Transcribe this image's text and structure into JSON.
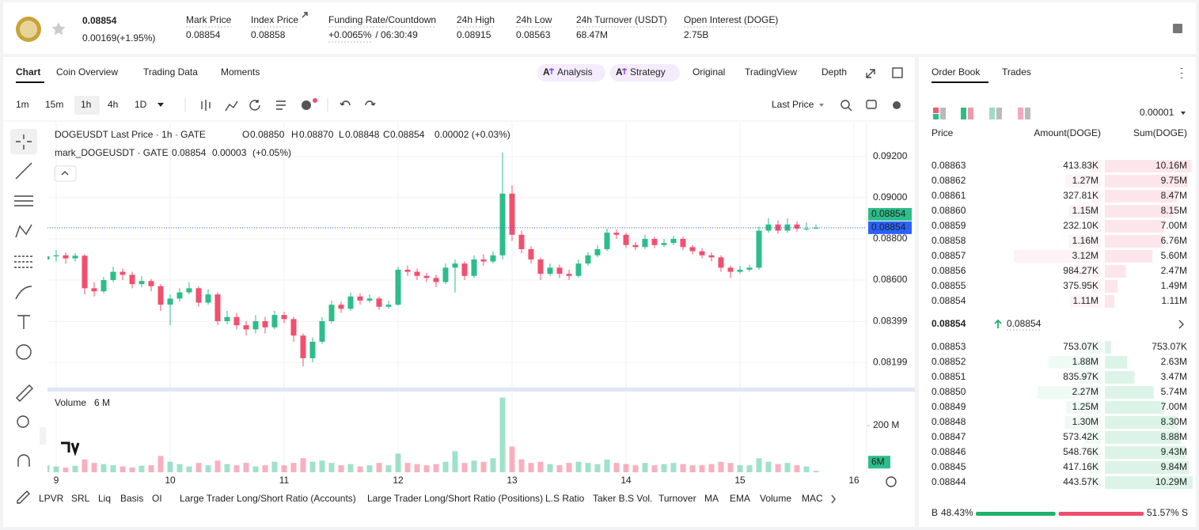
{
  "header": {
    "price": "0.08854",
    "change": "0.00169(+1.95%)",
    "stats": [
      {
        "label": "Mark Price",
        "value": "0.08854"
      },
      {
        "label": "Index Price",
        "value": "0.08858"
      },
      {
        "label": "Funding Rate/Countdown",
        "value": "+0.0065%",
        "extra": "/ 06:30:49"
      },
      {
        "label": "24h High",
        "value": "0.08915"
      },
      {
        "label": "24h Low",
        "value": "0.08563"
      },
      {
        "label": "24h Turnover (USDT)",
        "value": "68.47M"
      },
      {
        "label": "Open Interest (DOGE)",
        "value": "2.75B"
      }
    ]
  },
  "chart_tabs": [
    "Chart",
    "Coin Overview",
    "Trading Data",
    "Moments"
  ],
  "ai_buttons": [
    "Analysis",
    "Strategy"
  ],
  "view_tabs": [
    "Original",
    "TradingView",
    "Depth"
  ],
  "intervals": [
    "1m",
    "15m",
    "1h",
    "4h",
    "1D"
  ],
  "price_source": "Last Price",
  "legend": {
    "title": "DOGEUSDT Last Price · 1h · GATE",
    "ohlc": [
      "O",
      "0.08850",
      "H",
      "0.08870",
      "L",
      "0.08848",
      "C",
      "0.08854"
    ],
    "change": "0.00002 (+0.03%)",
    "mark_title": "mark_DOGEUSDT · GATE",
    "mark_values": [
      "0.08854",
      "0.00003",
      "(+0.05%)"
    ]
  },
  "chart_data": {
    "type": "candlestick",
    "up_color": "#2dbd8a",
    "down_color": "#f0506e",
    "x": [
      -2,
      0,
      2,
      4,
      6,
      8,
      10,
      12,
      14,
      16,
      18,
      20,
      22,
      24,
      26,
      28,
      30,
      32,
      34,
      36,
      38,
      40,
      42,
      44,
      46,
      48,
      50,
      52,
      54,
      56,
      58,
      60,
      62,
      64,
      66,
      68,
      70,
      72,
      74,
      76,
      78,
      80,
      82,
      84,
      86,
      88,
      90,
      92,
      94,
      96,
      98,
      100,
      102,
      104,
      106,
      108,
      110,
      112,
      114,
      116,
      118,
      120,
      122,
      124,
      126,
      128,
      130,
      132,
      134,
      136,
      138,
      140,
      142,
      144,
      146,
      148,
      150,
      152,
      154,
      156,
      158,
      160
    ],
    "open": [
      0.087,
      0.08715,
      0.0872,
      0.08705,
      0.08718,
      0.0856,
      0.08545,
      0.086,
      0.0864,
      0.08625,
      0.0858,
      0.08595,
      0.0857,
      0.0848,
      0.0851,
      0.0854,
      0.0856,
      0.0849,
      0.0853,
      0.084,
      0.0842,
      0.0838,
      0.0836,
      0.084,
      0.0837,
      0.0843,
      0.0841,
      0.0833,
      0.0822,
      0.083,
      0.084,
      0.0848,
      0.0846,
      0.0852,
      0.085,
      0.0851,
      0.0847,
      0.0848,
      0.0865,
      0.0864,
      0.0862,
      0.0861,
      0.0859,
      0.0866,
      0.0868,
      0.0862,
      0.087,
      0.0869,
      0.0872,
      0.0902,
      0.0882,
      0.0875,
      0.087,
      0.0863,
      0.0866,
      0.0863,
      0.0862,
      0.0868,
      0.0872,
      0.0875,
      0.0883,
      0.0882,
      0.0877,
      0.0876,
      0.088,
      0.0877,
      0.0878,
      0.088,
      0.0876,
      0.0874,
      0.0872,
      0.0871,
      0.0866,
      0.0864,
      0.0865,
      0.0866,
      0.0884,
      0.0887,
      0.0884,
      0.0887,
      0.0885,
      0.0885
    ],
    "high": [
      0.0874,
      0.08745,
      0.08735,
      0.0873,
      0.08725,
      0.0859,
      0.08615,
      0.08665,
      0.08655,
      0.0864,
      0.0862,
      0.08605,
      0.0858,
      0.0853,
      0.0856,
      0.0859,
      0.0857,
      0.08555,
      0.0854,
      0.0845,
      0.0844,
      0.084,
      0.0843,
      0.0842,
      0.0845,
      0.08445,
      0.0842,
      0.0834,
      0.0832,
      0.0842,
      0.085,
      0.08495,
      0.0854,
      0.08535,
      0.0853,
      0.0852,
      0.085,
      0.08665,
      0.0867,
      0.08655,
      0.08635,
      0.08625,
      0.0868,
      0.087,
      0.0869,
      0.0872,
      0.08725,
      0.0874,
      0.0922,
      0.0906,
      0.0884,
      0.08765,
      0.0871,
      0.0868,
      0.08675,
      0.0865,
      0.087,
      0.08735,
      0.0877,
      0.0885,
      0.08845,
      0.0883,
      0.08785,
      0.0882,
      0.0881,
      0.088,
      0.08815,
      0.0881,
      0.0877,
      0.08755,
      0.08735,
      0.0872,
      0.0867,
      0.0867,
      0.08675,
      0.0886,
      0.089,
      0.0889,
      0.089,
      0.08885,
      0.0888,
      0.0887
    ],
    "low": [
      0.0868,
      0.0869,
      0.0868,
      0.0869,
      0.0853,
      0.0852,
      0.08535,
      0.0859,
      0.086,
      0.0856,
      0.08565,
      0.08545,
      0.0845,
      0.0838,
      0.08495,
      0.0853,
      0.0847,
      0.0848,
      0.0838,
      0.08385,
      0.0836,
      0.0833,
      0.0834,
      0.0834,
      0.0836,
      0.0839,
      0.083,
      0.0818,
      0.082,
      0.0829,
      0.0839,
      0.0844,
      0.0845,
      0.0848,
      0.0849,
      0.08455,
      0.0846,
      0.08475,
      0.0862,
      0.086,
      0.0859,
      0.08565,
      0.0858,
      0.0854,
      0.086,
      0.0861,
      0.0867,
      0.0868,
      0.087,
      0.0879,
      0.0873,
      0.0868,
      0.086,
      0.0862,
      0.0861,
      0.086,
      0.0861,
      0.0867,
      0.0871,
      0.0874,
      0.088,
      0.08755,
      0.08745,
      0.0875,
      0.08755,
      0.0876,
      0.0877,
      0.08745,
      0.08725,
      0.08705,
      0.0869,
      0.0864,
      0.0861,
      0.0863,
      0.0864,
      0.0865,
      0.0883,
      0.08825,
      0.0883,
      0.08835,
      0.0884,
      0.08848
    ],
    "close": [
      0.08715,
      0.0872,
      0.08705,
      0.08718,
      0.0856,
      0.08545,
      0.086,
      0.0864,
      0.08625,
      0.0858,
      0.08595,
      0.0857,
      0.0848,
      0.0851,
      0.0854,
      0.0856,
      0.0849,
      0.0853,
      0.084,
      0.0842,
      0.0838,
      0.0836,
      0.084,
      0.0837,
      0.0843,
      0.0841,
      0.0833,
      0.0822,
      0.083,
      0.084,
      0.0848,
      0.0846,
      0.0852,
      0.085,
      0.0851,
      0.0847,
      0.0848,
      0.0865,
      0.0864,
      0.0862,
      0.0861,
      0.0859,
      0.0866,
      0.0868,
      0.0862,
      0.087,
      0.0869,
      0.0872,
      0.0902,
      0.0882,
      0.0875,
      0.087,
      0.0863,
      0.0866,
      0.0863,
      0.0862,
      0.0868,
      0.0872,
      0.0875,
      0.0883,
      0.0882,
      0.0877,
      0.0876,
      0.088,
      0.0877,
      0.0878,
      0.088,
      0.0876,
      0.0874,
      0.0872,
      0.0871,
      0.0866,
      0.0864,
      0.0865,
      0.0866,
      0.0884,
      0.0887,
      0.0884,
      0.0887,
      0.0885,
      0.0885,
      0.08854
    ],
    "xlim": [
      -1.833,
      170.667
    ],
    "xticks": [
      {
        "value": 0,
        "label": "9"
      },
      {
        "value": 24,
        "label": "10"
      },
      {
        "value": 48,
        "label": "11"
      },
      {
        "value": 72,
        "label": "12"
      },
      {
        "value": 96,
        "label": "13"
      },
      {
        "value": 120,
        "label": "14"
      },
      {
        "value": 144,
        "label": "15"
      },
      {
        "value": 168,
        "label": "16"
      }
    ],
    "ylim": [
      0.08077,
      0.09365
    ],
    "yticks": [
      {
        "value": 0.092,
        "label": "0.09200"
      },
      {
        "value": 0.09,
        "label": "0.09000"
      },
      {
        "value": 0.088,
        "label": "0.08800"
      },
      {
        "value": 0.086,
        "label": "0.08600"
      },
      0.08399,
      0.08199
    ],
    "grid": true,
    "price_line": {
      "value": 0.08854,
      "label": "0.08854",
      "color": "#2962ff"
    },
    "last_tag": "0.08854",
    "volume": {
      "title": "Volume",
      "last": "6 M",
      "last_tag": "6M",
      "values": [
        30,
        25,
        20,
        28,
        55,
        40,
        35,
        30,
        25,
        20,
        28,
        30,
        70,
        45,
        35,
        25,
        40,
        30,
        50,
        35,
        30,
        40,
        25,
        30,
        45,
        30,
        40,
        60,
        45,
        50,
        40,
        30,
        35,
        25,
        30,
        40,
        30,
        80,
        40,
        35,
        30,
        35,
        45,
        90,
        40,
        50,
        45,
        60,
        320,
        110,
        55,
        40,
        45,
        35,
        30,
        40,
        45,
        40,
        35,
        55,
        40,
        35,
        30,
        40,
        30,
        35,
        40,
        35,
        30,
        30,
        35,
        45,
        40,
        30,
        30,
        60,
        45,
        35,
        40,
        30,
        25,
        6
      ],
      "ylim": [
        0,
        339
      ],
      "yticks": [
        {
          "value": 200,
          "label": "200 M"
        }
      ]
    }
  },
  "indicators": [
    "LPVR",
    "SRL",
    "Liq",
    "Basis",
    "OI",
    "Large Trader Long/Short Ratio (Accounts)",
    "Large Trader Long/Short Ratio (Positions)",
    "L.S Ratio",
    "Taker B.S Vol.",
    "Turnover",
    "MA",
    "EMA",
    "Volume",
    "MACD"
  ],
  "order_book": {
    "tabs": [
      "Order Book",
      "Trades"
    ],
    "tick_size": "0.00001",
    "headers": [
      "Price",
      "Amount(DOGE)",
      "Sum(DOGE)"
    ],
    "asks": [
      {
        "price": "0.08863",
        "amount": {
          "value": 413830,
          "label": "413.83K"
        },
        "sum": {
          "value": 10160000,
          "label": "10.16M"
        }
      },
      {
        "price": "0.08862",
        "amount": {
          "value": 1270000,
          "label": "1.27M"
        },
        "sum": {
          "value": 9750000,
          "label": "9.75M"
        }
      },
      {
        "price": "0.08861",
        "amount": {
          "value": 327810,
          "label": "327.81K"
        },
        "sum": {
          "value": 8470000,
          "label": "8.47M"
        }
      },
      {
        "price": "0.08860",
        "amount": {
          "value": 1150000,
          "label": "1.15M"
        },
        "sum": {
          "value": 8150000,
          "label": "8.15M"
        }
      },
      {
        "price": "0.08859",
        "amount": {
          "value": 232100,
          "label": "232.10K"
        },
        "sum": {
          "value": 7000000,
          "label": "7.00M"
        }
      },
      {
        "price": "0.08858",
        "amount": {
          "value": 1160000,
          "label": "1.16M"
        },
        "sum": {
          "value": 6760000,
          "label": "6.76M"
        }
      },
      {
        "price": "0.08857",
        "amount": {
          "value": 3120000,
          "label": "3.12M"
        },
        "sum": {
          "value": 5600000,
          "label": "5.60M"
        }
      },
      {
        "price": "0.08856",
        "amount": {
          "value": 984270,
          "label": "984.27K"
        },
        "sum": {
          "value": 2470000,
          "label": "2.47M"
        }
      },
      {
        "price": "0.08855",
        "amount": {
          "value": 375950,
          "label": "375.95K"
        },
        "sum": {
          "value": 1490000,
          "label": "1.49M"
        }
      },
      {
        "price": "0.08854",
        "amount": {
          "value": 1110000,
          "label": "1.11M"
        },
        "sum": {
          "value": 1110000,
          "label": "1.11M"
        }
      }
    ],
    "mid_price": "0.08854",
    "mid_mark": "0.08854",
    "bids": [
      {
        "price": "0.08853",
        "amount": {
          "value": 753070,
          "label": "753.07K"
        },
        "sum": {
          "value": 753070,
          "label": "753.07K"
        }
      },
      {
        "price": "0.08852",
        "amount": {
          "value": 1880000,
          "label": "1.88M"
        },
        "sum": {
          "value": 2630000,
          "label": "2.63M"
        }
      },
      {
        "price": "0.08851",
        "amount": {
          "value": 835970,
          "label": "835.97K"
        },
        "sum": {
          "value": 3470000,
          "label": "3.47M"
        }
      },
      {
        "price": "0.08850",
        "amount": {
          "value": 2270000,
          "label": "2.27M"
        },
        "sum": {
          "value": 5740000,
          "label": "5.74M"
        }
      },
      {
        "price": "0.08849",
        "amount": {
          "value": 1250000,
          "label": "1.25M"
        },
        "sum": {
          "value": 7000000,
          "label": "7.00M"
        }
      },
      {
        "price": "0.08848",
        "amount": {
          "value": 1300000,
          "label": "1.30M"
        },
        "sum": {
          "value": 8300000,
          "label": "8.30M"
        }
      },
      {
        "price": "0.08847",
        "amount": {
          "value": 573420,
          "label": "573.42K"
        },
        "sum": {
          "value": 8880000,
          "label": "8.88M"
        }
      },
      {
        "price": "0.08846",
        "amount": {
          "value": 548760,
          "label": "548.76K"
        },
        "sum": {
          "value": 9430000,
          "label": "9.43M"
        }
      },
      {
        "price": "0.08845",
        "amount": {
          "value": 417160,
          "label": "417.16K"
        },
        "sum": {
          "value": 9840000,
          "label": "9.84M"
        }
      },
      {
        "price": "0.08844",
        "amount": {
          "value": 443570,
          "label": "443.57K"
        },
        "sum": {
          "value": 10290000,
          "label": "10.29M"
        }
      }
    ],
    "ratio": {
      "buy_letter": "B",
      "buy": {
        "value": 48.43,
        "label": "48.43%"
      },
      "sell": {
        "value": 51.57,
        "label": "51.57%"
      },
      "sell_letter": "S"
    }
  }
}
